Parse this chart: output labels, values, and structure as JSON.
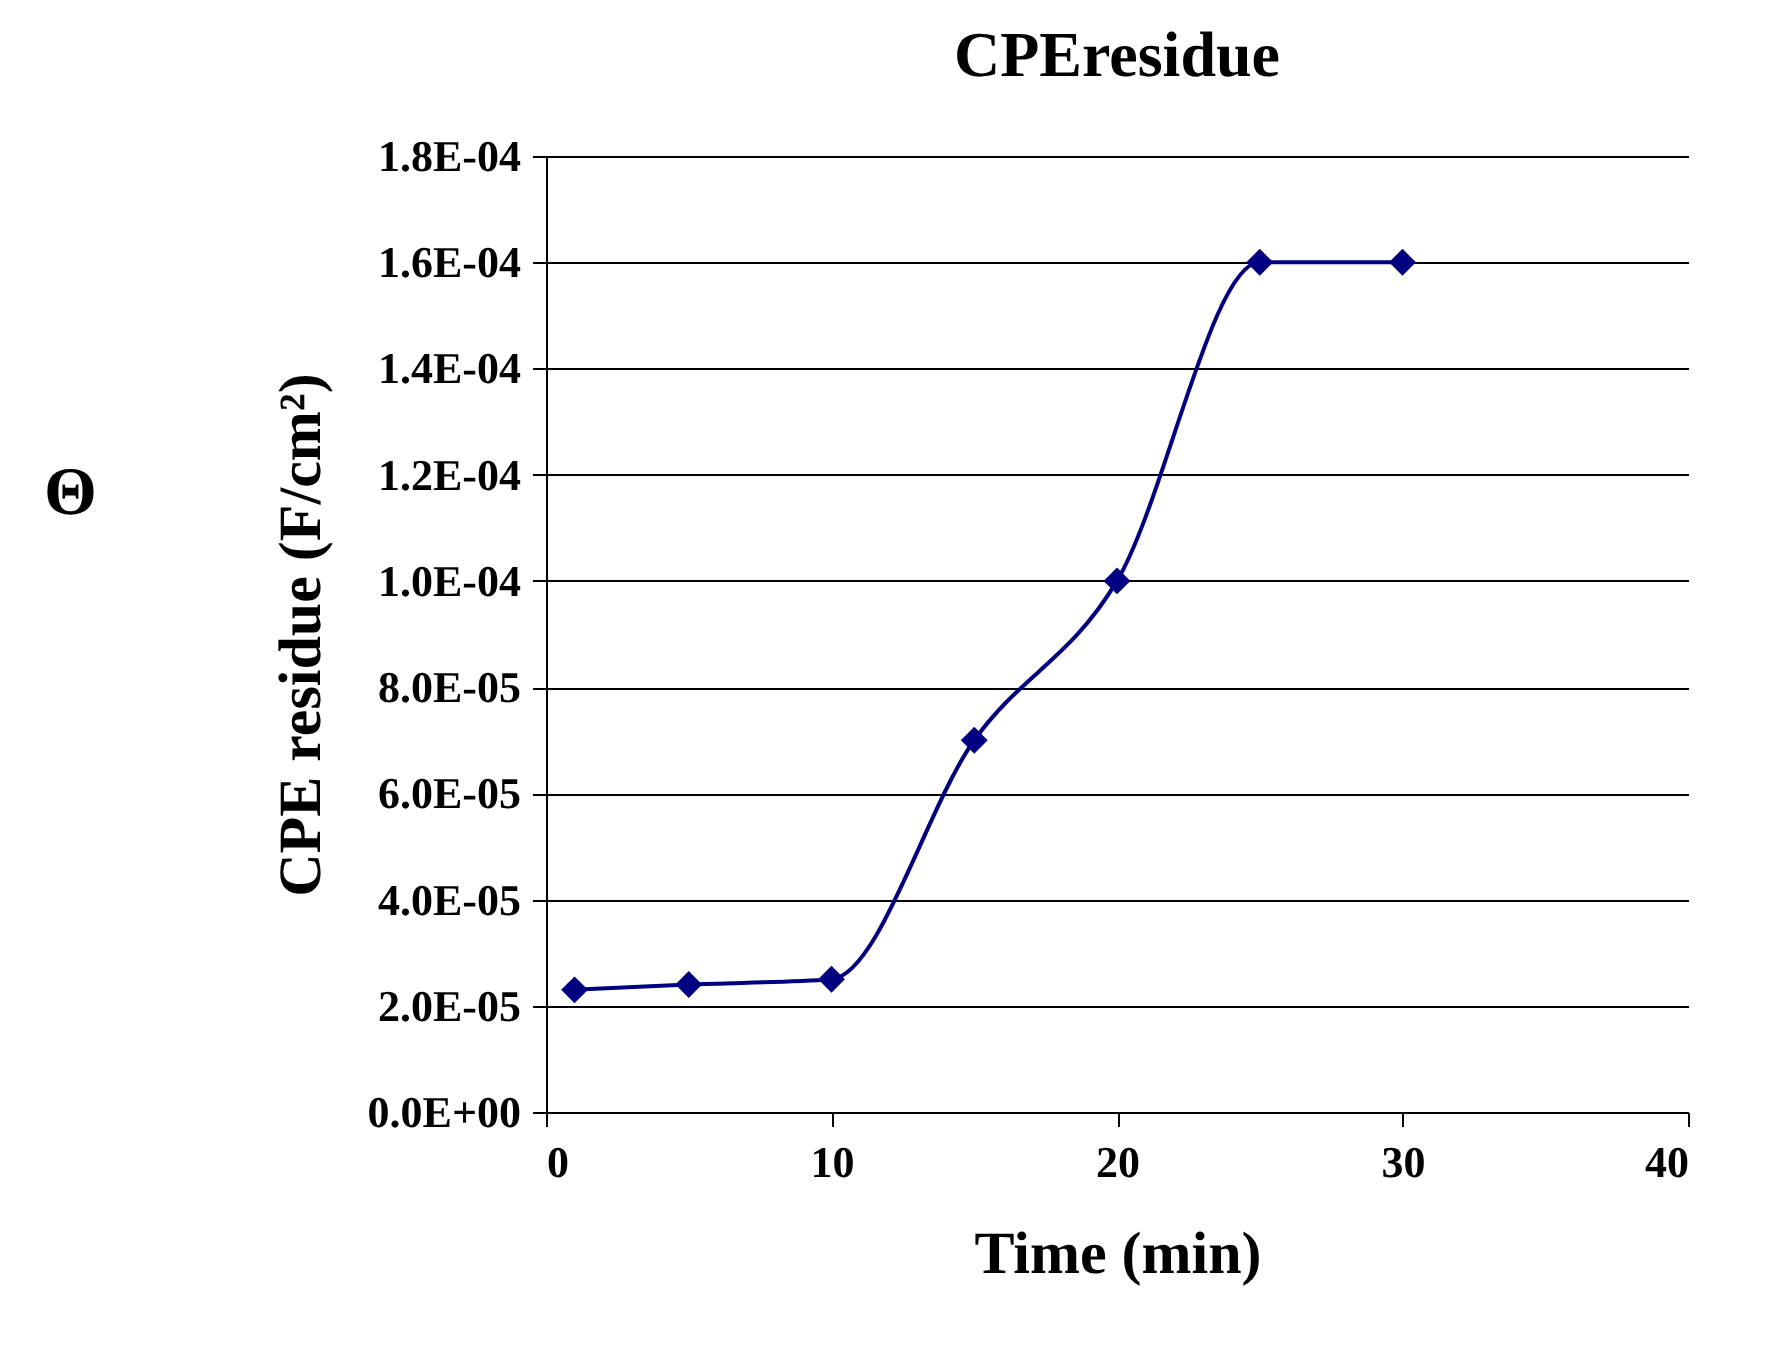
{
  "chart_data": {
    "type": "line",
    "title": "CPEresidue",
    "xlabel": "Time (min)",
    "ylabel": "CPE residue (F/cm²)",
    "annotations": [
      "Θ"
    ],
    "x": [
      1,
      5,
      10,
      15,
      20,
      25,
      30
    ],
    "series": [
      {
        "color": "#000080",
        "values": [
          2.3e-05,
          2.4e-05,
          2.5e-05,
          7e-05,
          0.0001,
          0.00016,
          0.00016
        ]
      }
    ],
    "xlim": [
      0,
      40
    ],
    "xticks": [
      0,
      10,
      20,
      30,
      40
    ],
    "ylim": [
      0,
      0.00018
    ],
    "yticks": [
      {
        "value": 0,
        "label": "0.0E+00"
      },
      {
        "value": 2e-05,
        "label": "2.0E-05"
      },
      {
        "value": 4e-05,
        "label": "4.0E-05"
      },
      {
        "value": 6e-05,
        "label": "6.0E-05"
      },
      {
        "value": 8e-05,
        "label": "8.0E-05"
      },
      {
        "value": 0.0001,
        "label": "1.0E-04"
      },
      {
        "value": 0.00012,
        "label": "1.2E-04"
      },
      {
        "value": 0.00014,
        "label": "1.4E-04"
      },
      {
        "value": 0.00016,
        "label": "1.6E-04"
      },
      {
        "value": 0.00018,
        "label": "1.8E-04"
      }
    ],
    "grid": "y",
    "marker": "diamond",
    "line_style": "solid"
  }
}
